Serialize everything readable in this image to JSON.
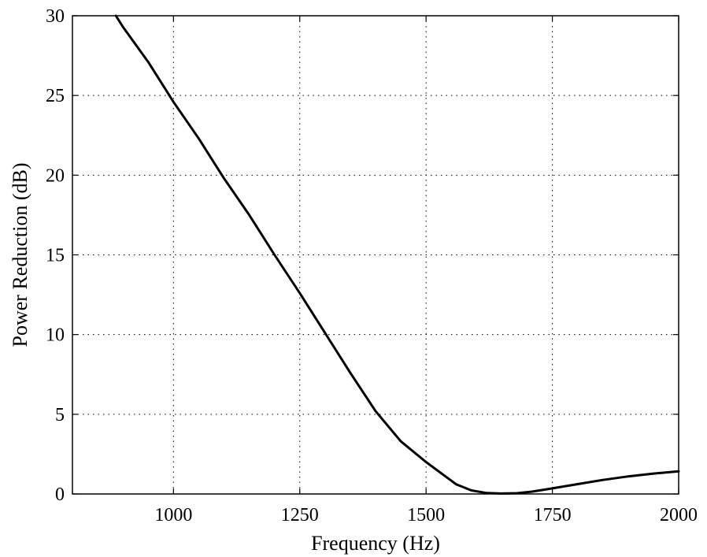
{
  "chart_data": {
    "type": "line",
    "title": "",
    "xlabel": "Frequency (Hz)",
    "ylabel": "Power Reduction (dB)",
    "xlim": [
      800,
      2000
    ],
    "ylim": [
      0,
      30
    ],
    "grid": true,
    "legend": "none",
    "line_color": "#000000",
    "x_ticks": [
      {
        "value": 1000,
        "label": "1000"
      },
      {
        "value": 1250,
        "label": "1250"
      },
      {
        "value": 1500,
        "label": "1500"
      },
      {
        "value": 1750,
        "label": "1750"
      },
      {
        "value": 2000,
        "label": "2000"
      }
    ],
    "y_ticks": [
      {
        "value": 0,
        "label": "0"
      },
      {
        "value": 5,
        "label": "5"
      },
      {
        "value": 10,
        "label": "10"
      },
      {
        "value": 15,
        "label": "15"
      },
      {
        "value": 20,
        "label": "20"
      },
      {
        "value": 25,
        "label": "25"
      },
      {
        "value": 30,
        "label": "30"
      }
    ],
    "series": [
      {
        "x": [
          886,
          900,
          950,
          1000,
          1050,
          1100,
          1150,
          1200,
          1250,
          1300,
          1350,
          1400,
          1450,
          1500,
          1530,
          1560,
          1590,
          1620,
          1650,
          1680,
          1710,
          1750,
          1800,
          1850,
          1900,
          1950,
          2000
        ],
        "values": [
          30,
          29.3,
          27.1,
          24.6,
          22.3,
          19.8,
          17.5,
          15.0,
          12.6,
          10.1,
          7.6,
          5.2,
          3.3,
          2.0,
          1.3,
          0.6,
          0.22,
          0.06,
          0.03,
          0.05,
          0.15,
          0.35,
          0.62,
          0.88,
          1.1,
          1.28,
          1.42
        ]
      }
    ]
  }
}
